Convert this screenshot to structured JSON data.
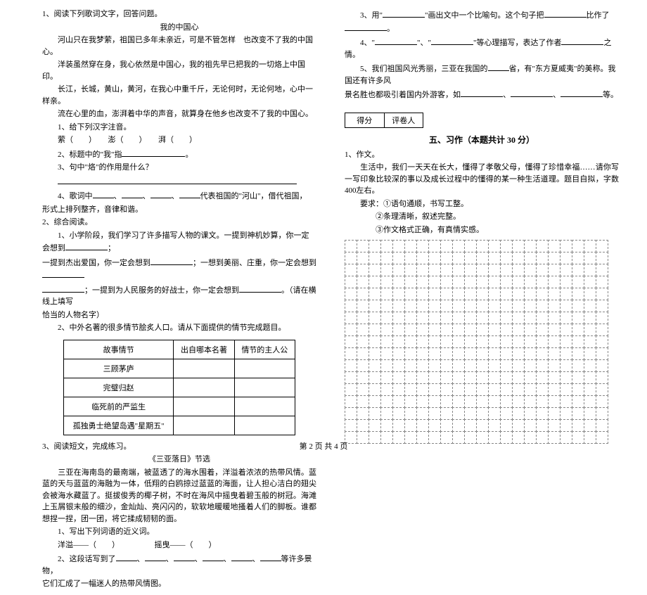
{
  "left": {
    "q1": {
      "num": "1、阅读下列歌词文字，回答问题。",
      "title": "我的中国心",
      "lines": [
        "河山只在我梦萦，祖国已多年未亲近，可是不管怎样　也改变不了我的中国心。",
        "洋装虽然穿在身，我心依然是中国心，我的祖先早已把我的一切烙上中国印。",
        "长江，长城，黄山，黄河，在我心中重千斤，无论何时，无论何地，心中一样亲。",
        "流在心里的血，澎湃着中华的声音，就算身在他乡也改变不了我的中国心。"
      ],
      "s1": "1、给下列汉字注音。",
      "s1a": "萦（　　）　　澎（　　）　　湃（　　）",
      "s2": "2、标题中的\"我\"指",
      "s3": "3、句中\"烙\"的作用是什么？",
      "s4a": "4、歌词中",
      "s4b": "代表祖国的\"河山\"，借代祖国，",
      "s4c": "形式上排列整齐，音律和谐。"
    },
    "q2": {
      "num": "2、综合阅读。",
      "p1a": "1、小学阶段，我们学习了许多描写人物的课文。一提到神机妙算，你一定会想到",
      "p1b": "；",
      "p2a": "一提到杰出爱国，你一定会想到",
      "p2b": "；一想到美丽、庄重，你一定会想到",
      "p2c": "；一提到为人民服务的好战士，你一定会想到",
      "p2d": "。（请在横线上填写",
      "p2e": "恰当的人物名字）",
      "p3": "2、中外名著的很多情节脍炙人口。请从下面提供的情节完成题目。"
    },
    "table": {
      "h1": "故事情节",
      "h2": "出自哪本名著",
      "h3": "情节的主人公",
      "r1": "三顾茅庐",
      "r2": "完璧归赵",
      "r3": "临死前的严监生",
      "r4": "孤独勇士绝望岛遇\"星期五\""
    },
    "q3": {
      "num": "3、阅读短文，完成练习。",
      "title": "《三亚落日》节选",
      "body": "　　三亚在海南岛的最南端，被蓝透了的海水围着，洋溢着浓浓的热带风情。蓝蓝的天与蓝蓝的海融为一体，低翔的白鸥掠过蓝蓝的海面，让人担心洁白的翅尖会被海水藏蓝了。挺拔俊秀的椰子树，不时在海风中摇曳着碧玉般的树冠。海滩上玉屑银末般的细沙，金灿灿、亮闪闪的，软软地暖暖地搔着人们的脚板。谁都想捏一捏，团一团，将它揉成韧韧的面。",
      "s1": "1、写出下列词语的近义词。",
      "s1a": "洋溢——（　　）　　　　　摇曳——（　　）",
      "s2a": "2、这段话写到了",
      "s2b": "等许多景物，",
      "s2c": "它们汇成了一幅迷人的热带风情图。"
    }
  },
  "right": {
    "r3": "3、用\"",
    "r3b": "\"画出文中一个比喻句。这个句子把",
    "r3c": "比作了",
    "r3d": "。",
    "r4": "4、\"",
    "r4b": "\"、\"",
    "r4c": "\"等心理描写，表达了作者",
    "r4d": "之情。",
    "r5a": "5、我们祖国风光秀丽，三亚在我国的",
    "r5b": "省，有\"东方夏威夷\"的美称。我国还有许多风",
    "r5c": "景名胜也都吸引着国内外游客，如",
    "r5d": "、",
    "r5e": "、",
    "r5f": "等。",
    "score1": "得分",
    "score2": "评卷人",
    "section": "五、习作（本题共计 30 分）",
    "w1": "1、作文。",
    "w2": "　　生活中，我们一天天在长大，懂得了孝敬父母，懂得了珍惜幸福……请你写一写印象比较深的事以及成长过程中的懂得的某一种生活道理。题目自拟，字数400左右。",
    "req": "要求：①语句通顺，书写工整。",
    "reqb": "②条理清晰，叙述完整。",
    "reqc": "③作文格式正确，有真情实感。"
  },
  "footer": "第 2 页 共 4 页"
}
